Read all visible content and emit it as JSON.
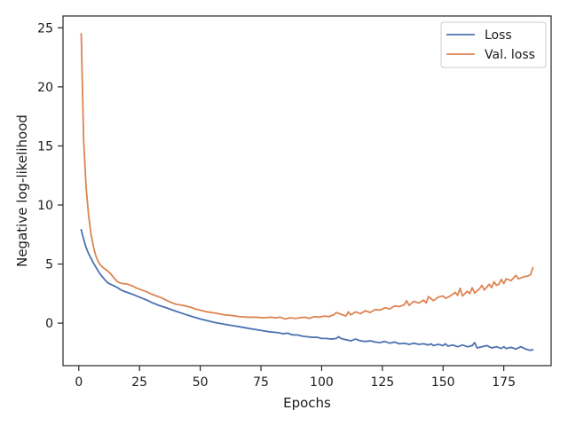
{
  "chart_data": {
    "type": "line",
    "title": "",
    "xlabel": "Epochs",
    "ylabel": "Negative log-likelihood",
    "xlim": [
      -6.5,
      194.5
    ],
    "ylim": [
      -3.6,
      26.0
    ],
    "xticks": [
      0,
      25,
      50,
      75,
      100,
      125,
      150,
      175
    ],
    "yticks": [
      0,
      5,
      10,
      15,
      20,
      25
    ],
    "grid": false,
    "legend": {
      "placement": "top-right"
    },
    "series": [
      {
        "name": "Loss",
        "color": "#4c72b0",
        "points": [
          [
            1,
            7.9
          ],
          [
            2,
            7.1
          ],
          [
            3,
            6.4
          ],
          [
            4,
            5.9
          ],
          [
            5,
            5.5
          ],
          [
            6,
            5.1
          ],
          [
            7,
            4.75
          ],
          [
            8,
            4.4
          ],
          [
            9,
            4.1
          ],
          [
            10,
            3.85
          ],
          [
            11,
            3.6
          ],
          [
            12,
            3.4
          ],
          [
            13,
            3.3
          ],
          [
            14,
            3.2
          ],
          [
            15,
            3.1
          ],
          [
            16,
            3.0
          ],
          [
            17,
            2.85
          ],
          [
            18,
            2.75
          ],
          [
            20,
            2.6
          ],
          [
            22,
            2.45
          ],
          [
            25,
            2.2
          ],
          [
            28,
            1.95
          ],
          [
            30,
            1.75
          ],
          [
            33,
            1.5
          ],
          [
            36,
            1.3
          ],
          [
            40,
            1.0
          ],
          [
            43,
            0.8
          ],
          [
            46,
            0.6
          ],
          [
            50,
            0.35
          ],
          [
            53,
            0.2
          ],
          [
            56,
            0.05
          ],
          [
            60,
            -0.1
          ],
          [
            63,
            -0.2
          ],
          [
            66,
            -0.3
          ],
          [
            70,
            -0.45
          ],
          [
            73,
            -0.55
          ],
          [
            76,
            -0.65
          ],
          [
            79,
            -0.75
          ],
          [
            82,
            -0.8
          ],
          [
            84,
            -0.9
          ],
          [
            86,
            -0.85
          ],
          [
            88,
            -1.0
          ],
          [
            90,
            -1.0
          ],
          [
            92,
            -1.1
          ],
          [
            94,
            -1.15
          ],
          [
            96,
            -1.2
          ],
          [
            98,
            -1.2
          ],
          [
            100,
            -1.3
          ],
          [
            102,
            -1.3
          ],
          [
            104,
            -1.35
          ],
          [
            106,
            -1.3
          ],
          [
            107,
            -1.15
          ],
          [
            108,
            -1.3
          ],
          [
            110,
            -1.4
          ],
          [
            112,
            -1.5
          ],
          [
            114,
            -1.35
          ],
          [
            116,
            -1.5
          ],
          [
            118,
            -1.55
          ],
          [
            120,
            -1.5
          ],
          [
            122,
            -1.6
          ],
          [
            124,
            -1.65
          ],
          [
            126,
            -1.55
          ],
          [
            128,
            -1.7
          ],
          [
            130,
            -1.6
          ],
          [
            132,
            -1.75
          ],
          [
            134,
            -1.7
          ],
          [
            136,
            -1.8
          ],
          [
            138,
            -1.7
          ],
          [
            140,
            -1.8
          ],
          [
            142,
            -1.75
          ],
          [
            144,
            -1.85
          ],
          [
            145,
            -1.75
          ],
          [
            146,
            -1.9
          ],
          [
            148,
            -1.8
          ],
          [
            150,
            -1.9
          ],
          [
            151,
            -1.75
          ],
          [
            152,
            -1.95
          ],
          [
            154,
            -1.85
          ],
          [
            156,
            -2.0
          ],
          [
            158,
            -1.85
          ],
          [
            160,
            -2.0
          ],
          [
            162,
            -1.9
          ],
          [
            163,
            -1.65
          ],
          [
            164,
            -2.1
          ],
          [
            166,
            -2.0
          ],
          [
            168,
            -1.9
          ],
          [
            170,
            -2.1
          ],
          [
            172,
            -2.0
          ],
          [
            174,
            -2.15
          ],
          [
            175,
            -2.0
          ],
          [
            176,
            -2.15
          ],
          [
            178,
            -2.05
          ],
          [
            180,
            -2.2
          ],
          [
            182,
            -2.0
          ],
          [
            184,
            -2.2
          ],
          [
            186,
            -2.3
          ],
          [
            187,
            -2.25
          ]
        ]
      },
      {
        "name": "Val. loss",
        "color": "#dd8452",
        "points": [
          [
            1,
            24.5
          ],
          [
            2,
            15.5
          ],
          [
            3,
            11.5
          ],
          [
            4,
            9.2
          ],
          [
            5,
            7.6
          ],
          [
            6,
            6.5
          ],
          [
            7,
            5.7
          ],
          [
            8,
            5.2
          ],
          [
            9,
            4.9
          ],
          [
            10,
            4.7
          ],
          [
            11,
            4.55
          ],
          [
            12,
            4.4
          ],
          [
            13,
            4.2
          ],
          [
            14,
            3.95
          ],
          [
            15,
            3.7
          ],
          [
            16,
            3.5
          ],
          [
            17,
            3.4
          ],
          [
            18,
            3.35
          ],
          [
            20,
            3.3
          ],
          [
            22,
            3.15
          ],
          [
            24,
            2.95
          ],
          [
            26,
            2.8
          ],
          [
            28,
            2.65
          ],
          [
            30,
            2.45
          ],
          [
            32,
            2.3
          ],
          [
            34,
            2.15
          ],
          [
            36,
            1.95
          ],
          [
            38,
            1.75
          ],
          [
            40,
            1.6
          ],
          [
            43,
            1.5
          ],
          [
            46,
            1.35
          ],
          [
            48,
            1.2
          ],
          [
            50,
            1.1
          ],
          [
            53,
            0.95
          ],
          [
            56,
            0.85
          ],
          [
            60,
            0.7
          ],
          [
            63,
            0.65
          ],
          [
            66,
            0.55
          ],
          [
            70,
            0.5
          ],
          [
            73,
            0.5
          ],
          [
            76,
            0.45
          ],
          [
            79,
            0.5
          ],
          [
            81,
            0.45
          ],
          [
            83,
            0.5
          ],
          [
            85,
            0.35
          ],
          [
            87,
            0.45
          ],
          [
            89,
            0.4
          ],
          [
            91,
            0.45
          ],
          [
            93,
            0.5
          ],
          [
            95,
            0.4
          ],
          [
            97,
            0.55
          ],
          [
            99,
            0.5
          ],
          [
            101,
            0.6
          ],
          [
            103,
            0.55
          ],
          [
            105,
            0.7
          ],
          [
            106,
            0.9
          ],
          [
            108,
            0.75
          ],
          [
            110,
            0.6
          ],
          [
            111,
            0.95
          ],
          [
            112,
            0.7
          ],
          [
            114,
            0.95
          ],
          [
            116,
            0.8
          ],
          [
            118,
            1.05
          ],
          [
            120,
            0.9
          ],
          [
            122,
            1.15
          ],
          [
            124,
            1.1
          ],
          [
            126,
            1.3
          ],
          [
            128,
            1.2
          ],
          [
            130,
            1.45
          ],
          [
            132,
            1.4
          ],
          [
            134,
            1.55
          ],
          [
            135,
            1.9
          ],
          [
            136,
            1.5
          ],
          [
            138,
            1.85
          ],
          [
            140,
            1.7
          ],
          [
            142,
            1.95
          ],
          [
            143,
            1.7
          ],
          [
            144,
            2.25
          ],
          [
            146,
            1.9
          ],
          [
            148,
            2.2
          ],
          [
            150,
            2.3
          ],
          [
            151,
            2.1
          ],
          [
            153,
            2.3
          ],
          [
            155,
            2.6
          ],
          [
            156,
            2.35
          ],
          [
            157,
            2.95
          ],
          [
            158,
            2.3
          ],
          [
            160,
            2.7
          ],
          [
            161,
            2.5
          ],
          [
            162,
            3.0
          ],
          [
            163,
            2.55
          ],
          [
            165,
            2.9
          ],
          [
            166,
            3.2
          ],
          [
            167,
            2.8
          ],
          [
            169,
            3.3
          ],
          [
            170,
            3.0
          ],
          [
            171,
            3.5
          ],
          [
            172,
            3.2
          ],
          [
            173,
            3.3
          ],
          [
            174,
            3.7
          ],
          [
            175,
            3.35
          ],
          [
            176,
            3.75
          ],
          [
            178,
            3.6
          ],
          [
            180,
            4.05
          ],
          [
            181,
            3.75
          ],
          [
            183,
            3.9
          ],
          [
            185,
            4.0
          ],
          [
            186,
            4.1
          ],
          [
            187,
            4.7
          ]
        ]
      }
    ]
  }
}
